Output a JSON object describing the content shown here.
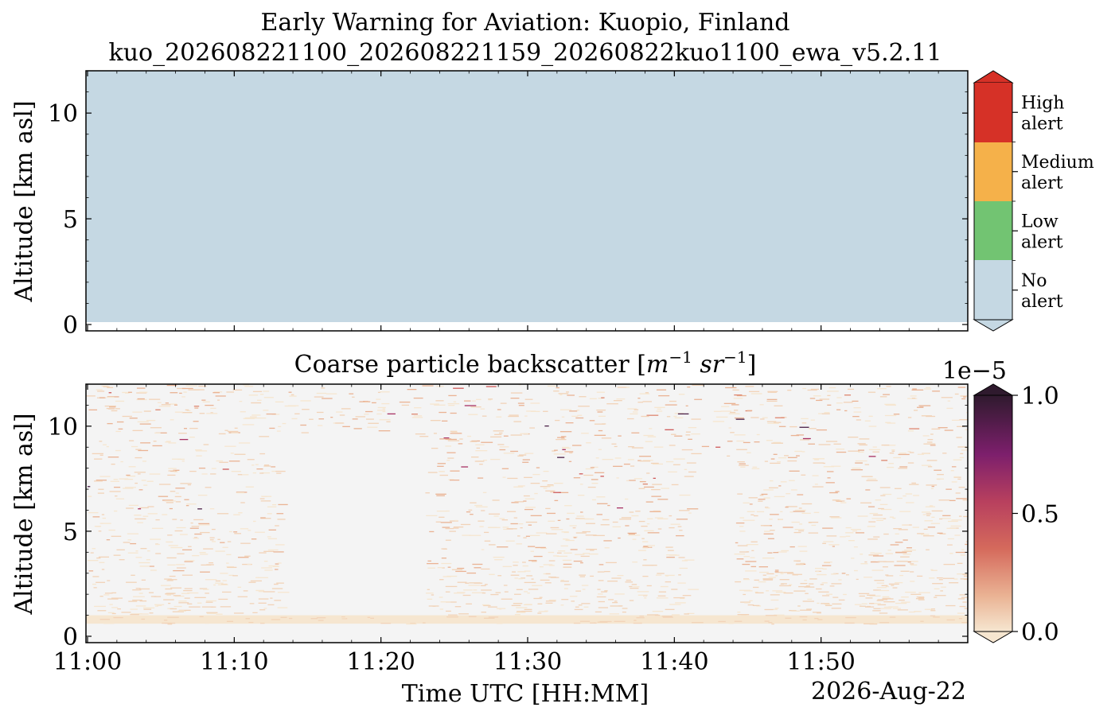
{
  "figure": {
    "title_line1": "Early Warning for Aviation: Kuopio, Finland",
    "title_line2": "kuo_202608221100_202608221159_20260822kuo1100_ewa_v5.2.11",
    "date_label": "2026-Aug-22",
    "xlabel": "Time UTC [HH:MM]"
  },
  "colors": {
    "no_alert": "#c5d8e3",
    "low_alert": "#72c472",
    "medium_alert": "#f5b14a",
    "high_alert": "#d63127",
    "background_panel": "#f4f4f4",
    "backscatter_low": "#f6e6d0",
    "backscatter_high": "#2f1a2e"
  },
  "chart_data": [
    {
      "type": "heatmap",
      "title": "",
      "ylabel": "Altitude [km asl]",
      "xlabel": "",
      "x_ticks": [
        "11:00",
        "11:10",
        "11:20",
        "11:30",
        "11:40",
        "11:50"
      ],
      "x_range": [
        "11:00",
        "11:59"
      ],
      "y_ticks": [
        "0",
        "5",
        "10"
      ],
      "y_tick_values": [
        0,
        5,
        10
      ],
      "ylim": [
        0,
        12
      ],
      "categories": [
        "No alert",
        "Low alert",
        "Medium alert",
        "High alert"
      ],
      "colorbar": {
        "entries": [
          {
            "line1": "High",
            "line2": "alert",
            "color": "#d63127"
          },
          {
            "line1": "Medium",
            "line2": "alert",
            "color": "#f5b14a"
          },
          {
            "line1": "Low",
            "line2": "alert",
            "color": "#72c472"
          },
          {
            "line1": "No",
            "line2": "alert",
            "color": "#c5d8e3"
          }
        ]
      },
      "regions": [
        {
          "category": "No alert",
          "time_start": "11:00",
          "time_end": "11:59",
          "altitude_min": 0.4,
          "altitude_max": 12
        }
      ]
    },
    {
      "type": "heatmap",
      "title_main": "Coarse particle backscatter [",
      "title_units": "m",
      "title_units_exp1": "−1",
      "title_units_2": "sr",
      "title_units_exp2": "−1",
      "title_end": "]",
      "ylabel": "Altitude [km asl]",
      "xlabel": "Time UTC [HH:MM]",
      "x_ticks": [
        "11:00",
        "11:10",
        "11:20",
        "11:30",
        "11:40",
        "11:50"
      ],
      "x_range": [
        "11:00",
        "11:59"
      ],
      "y_ticks": [
        "0",
        "5",
        "10"
      ],
      "y_tick_values": [
        0,
        5,
        10
      ],
      "ylim": [
        0,
        12
      ],
      "colorbar": {
        "scale_label": "1e−5",
        "ticks": [
          "0.0",
          "0.5",
          "1.0"
        ],
        "tick_values": [
          0,
          0.5,
          1.0
        ],
        "range": [
          0,
          1.0
        ]
      },
      "structure": {
        "lowest_valid_altitude_km": 0.6,
        "dense_low_layer_top_km": 1.0,
        "clear_intervals": [
          {
            "time_start": "11:13",
            "time_end": "11:23",
            "altitude_min": 1.0,
            "altitude_max": 9.5
          },
          {
            "time_start": "11:41",
            "time_end": "11:44",
            "altitude_min": 1.0,
            "altitude_max": 8.5
          }
        ],
        "typical_value_low_altitude": 0.05,
        "typical_value_upper": 0.15,
        "peak_value": 0.9
      }
    }
  ]
}
